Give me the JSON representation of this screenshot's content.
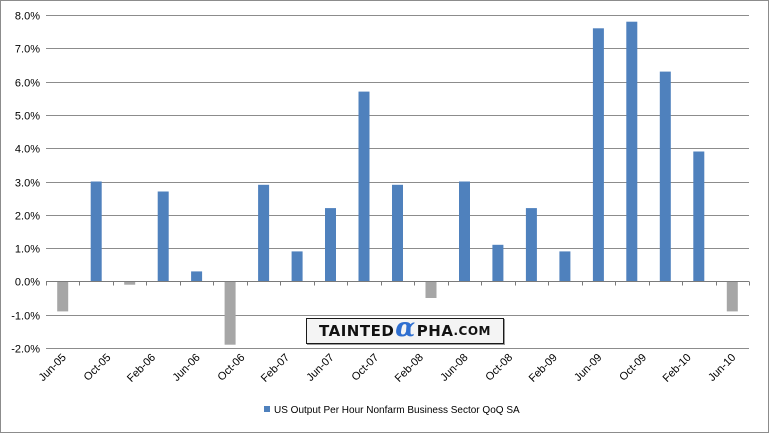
{
  "chart_data": {
    "type": "bar",
    "categories": [
      "Jun-05",
      "Sep-05",
      "Dec-05",
      "Mar-06",
      "Jun-06",
      "Sep-06",
      "Dec-06",
      "Mar-07",
      "Jun-07",
      "Sep-07",
      "Dec-07",
      "Mar-08",
      "Jun-08",
      "Sep-08",
      "Dec-08",
      "Mar-09",
      "Jun-09",
      "Sep-09",
      "Dec-09",
      "Mar-10",
      "Jun-10"
    ],
    "x_tick_labels": [
      "Jun-05",
      "Oct-05",
      "Feb-06",
      "Jun-06",
      "Oct-06",
      "Feb-07",
      "Jun-07",
      "Oct-07",
      "Feb-08",
      "Jun-08",
      "Oct-08",
      "Feb-09",
      "Jun-09",
      "Oct-09",
      "Feb-10",
      "Jun-10"
    ],
    "series": [
      {
        "name": "US Output Per Hour Nonfarm Business Sector QoQ SA",
        "values": [
          -0.9,
          3.0,
          -0.1,
          2.7,
          0.3,
          -1.9,
          2.9,
          0.9,
          2.2,
          5.7,
          2.9,
          -0.5,
          3.0,
          1.1,
          2.2,
          0.9,
          7.6,
          7.8,
          6.3,
          3.9,
          -0.9
        ]
      }
    ],
    "colors": {
      "positive": "#4f81bd",
      "negative": "#a6a6a6"
    },
    "ylim": [
      -2.0,
      8.0
    ],
    "y_ticks": [
      "-2.0%",
      "-1.0%",
      "0.0%",
      "1.0%",
      "2.0%",
      "3.0%",
      "4.0%",
      "5.0%",
      "6.0%",
      "7.0%",
      "8.0%"
    ],
    "title": "",
    "xlabel": "",
    "ylabel": "",
    "grid": true,
    "legend_position": "bottom"
  },
  "watermark": {
    "before": "TAINTED",
    "after": "PHA",
    "domain": ".COM"
  }
}
